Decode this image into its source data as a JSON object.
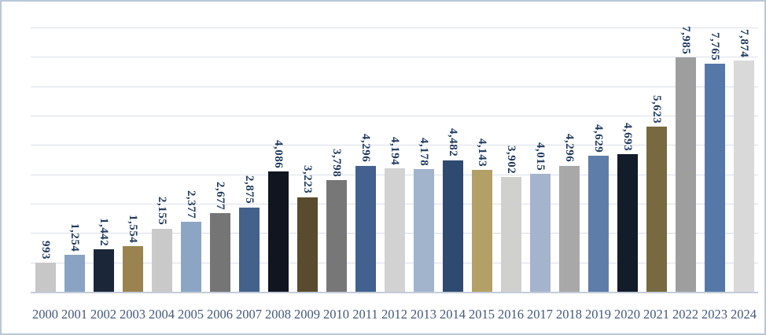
{
  "chart_data": {
    "type": "bar",
    "title": "",
    "xlabel": "",
    "ylabel": "",
    "categories": [
      "2000",
      "2001",
      "2002",
      "2003",
      "2004",
      "2005",
      "2006",
      "2007",
      "2008",
      "2009",
      "2010",
      "2011",
      "2012",
      "2013",
      "2014",
      "2015",
      "2016",
      "2017",
      "2018",
      "2019",
      "2020",
      "2021",
      "2022",
      "2023",
      "2024"
    ],
    "values": [
      993,
      1254,
      1442,
      1554,
      2155,
      2377,
      2677,
      2875,
      4086,
      3223,
      3798,
      4296,
      4194,
      4178,
      4482,
      4143,
      3902,
      4015,
      4296,
      4629,
      4693,
      5623,
      7985,
      7765,
      7874
    ],
    "value_labels": [
      "993",
      "1,254",
      "1,442",
      "1,554",
      "2,155",
      "2,377",
      "2,677",
      "2,875",
      "4,086",
      "3,223",
      "3,798",
      "4,296",
      "4,194",
      "4,178",
      "4,482",
      "4,143",
      "3,902",
      "4,015",
      "4,296",
      "4,629",
      "4,693",
      "5,623",
      "7,985",
      "7,765",
      "7,874"
    ],
    "bar_colors": [
      "#C7C7C7",
      "#8AA3C2",
      "#1B2639",
      "#99834E",
      "#C9C9C9",
      "#8CA5C5",
      "#757575",
      "#44618C",
      "#10151F",
      "#594B2D",
      "#777777",
      "#42618E",
      "#D2D2D2",
      "#A2B3CC",
      "#2E4A70",
      "#B3A067",
      "#D0D0CE",
      "#A4B4CC",
      "#A8A8A8",
      "#5F7DA9",
      "#131C2B",
      "#786940",
      "#9E9E9E",
      "#5578A9",
      "#D9D9D9"
    ],
    "ylim": [
      0,
      9000
    ],
    "gridline_interval": 1000,
    "grid": true,
    "legend_position": "none",
    "data_label_rotation": "rotated-90-clockwise",
    "y_axis_tick_labels_visible": false
  },
  "theme": {
    "data_label_color": "#1f3a5f",
    "category_label_color": "#44587c",
    "gridline_color": "#d9dfe8",
    "axis_line_color": "#c3ccd9",
    "frame_border_color": "#b9c6d8",
    "background_color": "#ffffff"
  }
}
